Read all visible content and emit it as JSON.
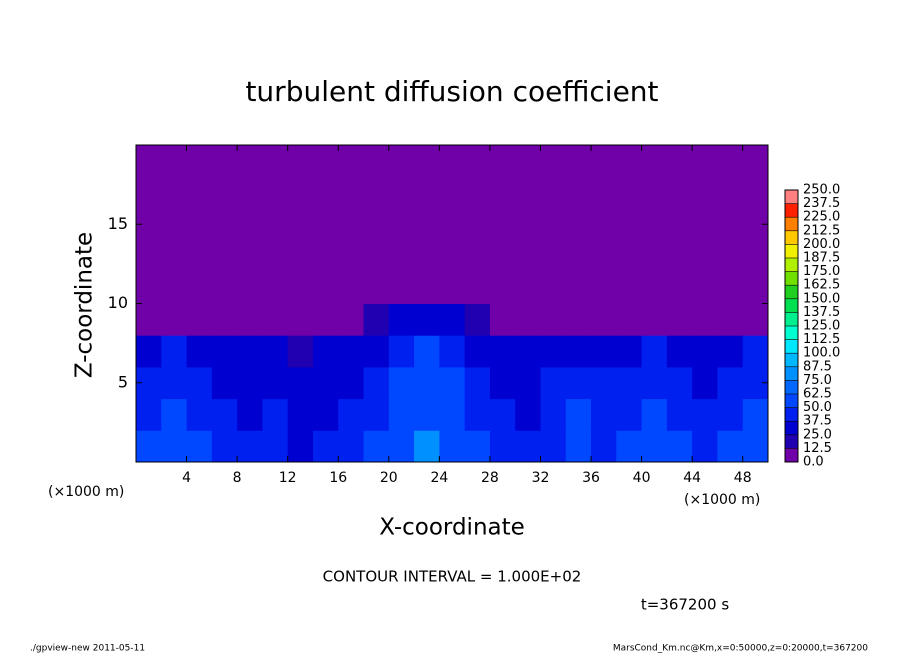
{
  "chart_data": {
    "type": "contour",
    "title": "turbulent diffusion coefficient",
    "x_label": "X-coordinate",
    "y_label": "Z-coordinate",
    "x_unit_label": "(×1000 m)",
    "contour_note": "CONTOUR INTERVAL = 1.000E+02",
    "time_label": "t=367200 s",
    "footer_left": "./gpview-new   2011-05-11",
    "footer_right": "MarsCond_Km.nc@Km,x=0:50000,z=0:20000,t=367200",
    "xlim": [
      0,
      50
    ],
    "ylim": [
      0,
      20
    ],
    "xticks": [
      4,
      8,
      12,
      16,
      20,
      24,
      28,
      32,
      36,
      40,
      44,
      48
    ],
    "yticks": [
      5,
      10,
      15
    ],
    "x": [
      1,
      3,
      5,
      7,
      9,
      11,
      13,
      15,
      17,
      19,
      21,
      23,
      25,
      27,
      29,
      31,
      33,
      35,
      37,
      39,
      41,
      43,
      45,
      47,
      49
    ],
    "y": [
      1,
      3,
      5,
      7,
      9,
      11,
      13,
      15,
      17,
      19
    ],
    "z": [
      [
        50,
        62,
        50,
        45,
        40,
        45,
        37,
        40,
        45,
        50,
        62,
        75,
        62,
        50,
        45,
        40,
        45,
        50,
        45,
        50,
        55,
        50,
        45,
        50,
        55
      ],
      [
        45,
        50,
        45,
        40,
        37,
        40,
        37,
        37,
        40,
        45,
        55,
        62,
        55,
        45,
        40,
        37,
        45,
        50,
        45,
        45,
        50,
        45,
        40,
        45,
        50
      ],
      [
        40,
        45,
        40,
        37,
        30,
        37,
        30,
        30,
        37,
        40,
        50,
        55,
        50,
        40,
        37,
        30,
        40,
        45,
        40,
        40,
        45,
        40,
        37,
        40,
        45
      ],
      [
        37,
        40,
        37,
        30,
        25,
        25,
        20,
        25,
        30,
        37,
        45,
        50,
        45,
        37,
        30,
        25,
        25,
        37,
        37,
        37,
        40,
        37,
        30,
        37,
        40
      ],
      [
        12,
        12,
        10,
        5,
        0,
        0,
        0,
        5,
        12,
        20,
        30,
        35,
        30,
        20,
        10,
        0,
        0,
        0,
        12,
        12,
        10,
        5,
        12,
        12,
        12
      ],
      [
        0,
        0,
        0,
        0,
        0,
        0,
        0,
        0,
        0,
        0,
        0,
        0,
        0,
        0,
        0,
        0,
        0,
        0,
        0,
        0,
        0,
        0,
        0,
        0,
        0
      ],
      [
        0,
        0,
        0,
        0,
        0,
        0,
        0,
        0,
        0,
        0,
        0,
        0,
        0,
        0,
        0,
        0,
        0,
        0,
        0,
        0,
        0,
        0,
        0,
        0,
        0
      ],
      [
        0,
        0,
        0,
        0,
        0,
        0,
        0,
        0,
        0,
        0,
        0,
        0,
        0,
        0,
        0,
        0,
        0,
        0,
        0,
        0,
        0,
        0,
        0,
        0,
        0
      ],
      [
        0,
        0,
        0,
        0,
        0,
        0,
        0,
        0,
        0,
        0,
        0,
        0,
        0,
        0,
        0,
        0,
        0,
        0,
        0,
        0,
        0,
        0,
        0,
        0,
        0
      ],
      [
        0,
        0,
        0,
        0,
        0,
        0,
        0,
        0,
        0,
        0,
        0,
        0,
        0,
        0,
        0,
        0,
        0,
        0,
        0,
        0,
        0,
        0,
        0,
        0,
        0
      ]
    ],
    "levels": [
      {
        "value": 0,
        "label": "0.0"
      },
      {
        "value": 12.5,
        "label": "12.5"
      },
      {
        "value": 25,
        "label": "25.0"
      },
      {
        "value": 37.5,
        "label": "37.5"
      },
      {
        "value": 50,
        "label": "50.0"
      },
      {
        "value": 62.5,
        "label": "62.5"
      },
      {
        "value": 75,
        "label": "75.0"
      },
      {
        "value": 87.5,
        "label": "87.5"
      },
      {
        "value": 100,
        "label": "100.0"
      },
      {
        "value": 112.5,
        "label": "112.5"
      },
      {
        "value": 125,
        "label": "125.0"
      },
      {
        "value": 137.5,
        "label": "137.5"
      },
      {
        "value": 150,
        "label": "150.0"
      },
      {
        "value": 162.5,
        "label": "162.5"
      },
      {
        "value": 175,
        "label": "175.0"
      },
      {
        "value": 187.5,
        "label": "187.5"
      },
      {
        "value": 200,
        "label": "200.0"
      },
      {
        "value": 212.5,
        "label": "212.5"
      },
      {
        "value": 225,
        "label": "225.0"
      },
      {
        "value": 237.5,
        "label": "237.5"
      },
      {
        "value": 250,
        "label": "250.0"
      }
    ],
    "colors": [
      "#7000a8",
      "#2000b0",
      "#0000d0",
      "#0020f0",
      "#0048ff",
      "#0068ff",
      "#0090ff",
      "#00b8ff",
      "#00e8ff",
      "#00ffd0",
      "#00f090",
      "#00e050",
      "#20d020",
      "#70e000",
      "#b0f000",
      "#f0f000",
      "#ffc800",
      "#ff8000",
      "#ff2000",
      "#ff8080"
    ]
  }
}
